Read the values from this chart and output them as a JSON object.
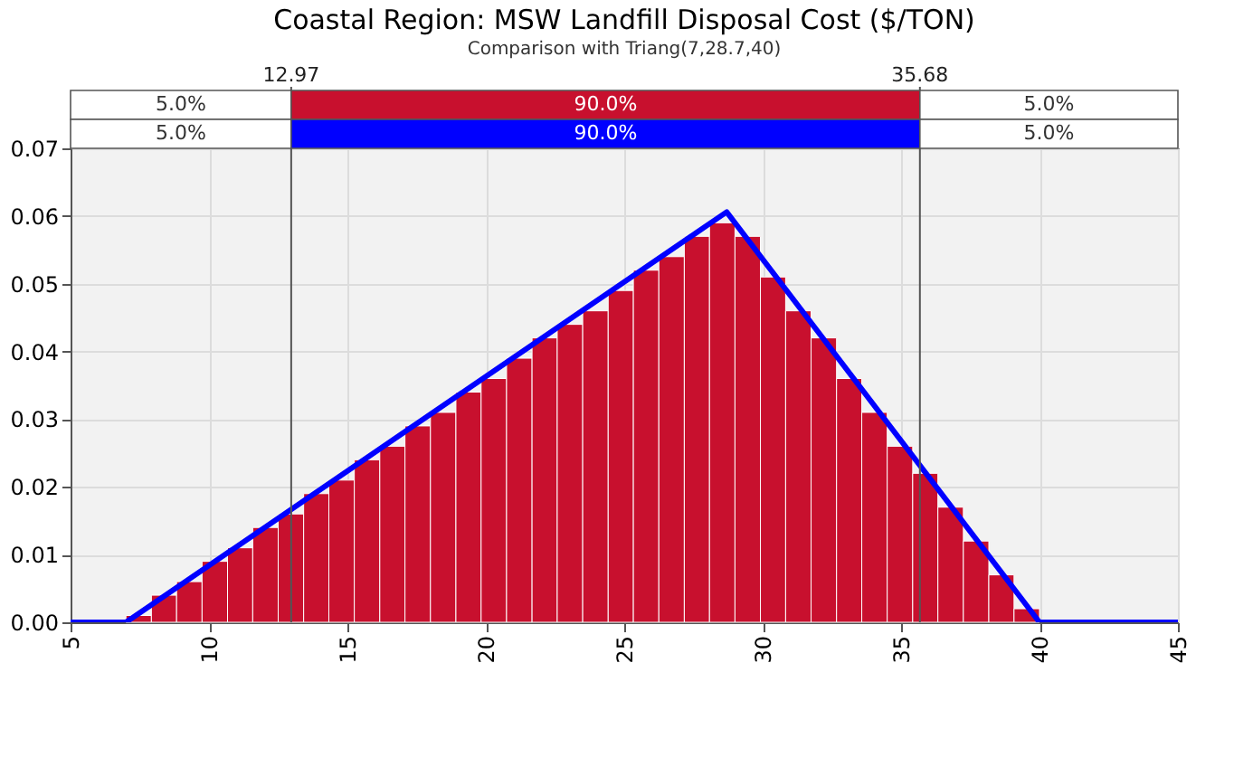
{
  "chart_data": {
    "type": "histogram",
    "title": "Coastal Region: MSW Landfill Disposal Cost ($/TON)",
    "subtitle": "Comparison with Triang(7,28.7,40)",
    "bins": [
      7,
      7.92,
      8.83,
      9.75,
      10.67,
      11.58,
      12.5,
      13.42,
      14.33,
      15.25,
      16.17,
      17.08,
      18,
      18.92,
      19.83,
      20.75,
      21.67,
      22.58,
      23.5,
      24.42,
      25.33,
      26.25,
      27.17,
      28.08,
      29,
      29.92,
      30.83,
      31.75,
      32.67,
      33.58,
      34.5,
      35.42,
      36.33,
      37.25,
      38.17,
      39.08,
      40
    ],
    "values": [
      0.001,
      0.004,
      0.006,
      0.009,
      0.011,
      0.014,
      0.016,
      0.019,
      0.021,
      0.024,
      0.026,
      0.029,
      0.031,
      0.034,
      0.036,
      0.039,
      0.042,
      0.044,
      0.046,
      0.049,
      0.052,
      0.054,
      0.057,
      0.059,
      0.057,
      0.051,
      0.046,
      0.042,
      0.036,
      0.031,
      0.026,
      0.022,
      0.017,
      0.012,
      0.007,
      0.002
    ],
    "color": "#c8102e",
    "series": [
      {
        "type": "line",
        "color": "#0000ff",
        "x": [
          5,
          7,
          28.7,
          40,
          45
        ],
        "values": [
          0,
          0,
          0.0606,
          0,
          0
        ]
      }
    ],
    "ref_lines": [
      {
        "axis": "x",
        "value": 12.97,
        "label": "12.97"
      },
      {
        "axis": "x",
        "value": 35.68,
        "label": "35.68"
      }
    ],
    "annotations": [
      "5.0%",
      "90.0%",
      "5.0%",
      "5.0%",
      "90.0%",
      "5.0%"
    ],
    "xlim": [
      5,
      45
    ],
    "xticks": [
      5,
      10,
      15,
      20,
      25,
      30,
      35,
      40,
      45
    ],
    "ylim": [
      0,
      0.07
    ],
    "yticks": [
      {
        "value": 0,
        "label": "0.00"
      },
      {
        "value": 0.01,
        "label": "0.01"
      },
      {
        "value": 0.02,
        "label": "0.02"
      },
      {
        "value": 0.03,
        "label": "0.03"
      },
      {
        "value": 0.04,
        "label": "0.04"
      },
      {
        "value": 0.05,
        "label": "0.05"
      },
      {
        "value": 0.06,
        "label": "0.06"
      },
      {
        "value": 0.07,
        "label": "0.07"
      }
    ],
    "grid": true
  }
}
